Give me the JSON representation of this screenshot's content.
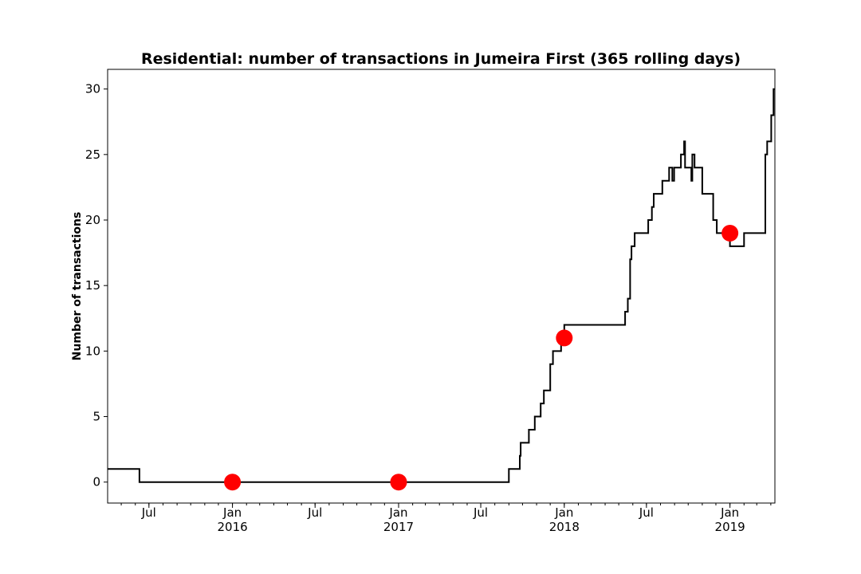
{
  "chart_data": {
    "type": "line",
    "title": "Residential: number of transactions in Jumeira First (365 rolling days)",
    "xlabel": "",
    "ylabel": "Number of transactions",
    "x_range": [
      "2015-04-01",
      "2019-04-10"
    ],
    "ylim": [
      -1.6,
      31.5
    ],
    "y_ticks": [
      0,
      5,
      10,
      15,
      20,
      25,
      30
    ],
    "x_ticks": [
      {
        "date": "2015-07-01",
        "label": "Jul",
        "year": ""
      },
      {
        "date": "2016-01-01",
        "label": "Jan",
        "year": "2016"
      },
      {
        "date": "2016-07-01",
        "label": "Jul",
        "year": ""
      },
      {
        "date": "2017-01-01",
        "label": "Jan",
        "year": "2017"
      },
      {
        "date": "2017-07-01",
        "label": "Jul",
        "year": ""
      },
      {
        "date": "2018-01-01",
        "label": "Jan",
        "year": "2018"
      },
      {
        "date": "2018-07-01",
        "label": "Jul",
        "year": ""
      },
      {
        "date": "2019-01-01",
        "label": "Jan",
        "year": "2019"
      }
    ],
    "grid": false,
    "colors": {
      "line": "#000000",
      "markers": "#ff0000"
    },
    "series": [
      {
        "style": "step",
        "points": [
          [
            "2015-04-01",
            1
          ],
          [
            "2015-06-10",
            0
          ],
          [
            "2017-09-01",
            1
          ],
          [
            "2017-09-25",
            2
          ],
          [
            "2017-09-27",
            3
          ],
          [
            "2017-10-15",
            4
          ],
          [
            "2017-10-28",
            5
          ],
          [
            "2017-11-10",
            6
          ],
          [
            "2017-11-17",
            7
          ],
          [
            "2017-12-01",
            9
          ],
          [
            "2017-12-07",
            10
          ],
          [
            "2017-12-25",
            11
          ],
          [
            "2018-01-01",
            12
          ],
          [
            "2018-05-15",
            13
          ],
          [
            "2018-05-21",
            14
          ],
          [
            "2018-05-26",
            17
          ],
          [
            "2018-05-29",
            18
          ],
          [
            "2018-06-05",
            19
          ],
          [
            "2018-07-05",
            20
          ],
          [
            "2018-07-13",
            21
          ],
          [
            "2018-07-17",
            22
          ],
          [
            "2018-08-05",
            23
          ],
          [
            "2018-08-20",
            24
          ],
          [
            "2018-08-27",
            23
          ],
          [
            "2018-08-31",
            24
          ],
          [
            "2018-09-15",
            25
          ],
          [
            "2018-09-22",
            26
          ],
          [
            "2018-09-24",
            24
          ],
          [
            "2018-10-08",
            23
          ],
          [
            "2018-10-10",
            25
          ],
          [
            "2018-10-15",
            24
          ],
          [
            "2018-11-01",
            22
          ],
          [
            "2018-11-25",
            20
          ],
          [
            "2018-12-03",
            19
          ],
          [
            "2019-01-01",
            18
          ],
          [
            "2019-02-01",
            19
          ],
          [
            "2019-03-20",
            25
          ],
          [
            "2019-03-24",
            26
          ],
          [
            "2019-04-02",
            28
          ],
          [
            "2019-04-07",
            30
          ],
          [
            "2019-04-10",
            30
          ]
        ]
      },
      {
        "style": "markers",
        "points": [
          [
            "2016-01-01",
            0
          ],
          [
            "2017-01-01",
            0
          ],
          [
            "2018-01-01",
            11
          ],
          [
            "2019-01-01",
            19
          ]
        ]
      }
    ]
  }
}
